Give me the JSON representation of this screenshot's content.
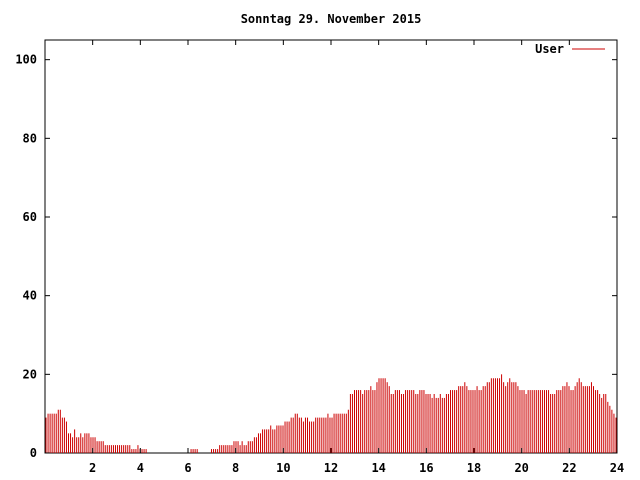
{
  "chart_data": {
    "type": "bar",
    "title": "Sonntag 29. November 2015",
    "xlabel": "",
    "ylabel": "",
    "xlim": [
      0,
      24
    ],
    "ylim": [
      0,
      105
    ],
    "x_ticks": [
      2,
      4,
      6,
      8,
      10,
      12,
      14,
      16,
      18,
      20,
      22,
      24
    ],
    "y_ticks": [
      0,
      20,
      40,
      60,
      80,
      100
    ],
    "grid": false,
    "legend_position": "top-right",
    "series": [
      {
        "name": "User",
        "color": "#cc0000",
        "values": [
          9,
          10,
          10,
          10,
          10,
          10,
          11,
          11,
          9,
          9,
          8,
          5,
          5,
          4,
          6,
          4,
          4,
          5,
          4,
          5,
          5,
          5,
          4,
          4,
          4,
          3,
          3,
          3,
          3,
          2,
          2,
          2,
          2,
          2,
          2,
          2,
          2,
          2,
          2,
          2,
          2,
          2,
          1,
          1,
          1,
          2,
          1,
          1,
          1,
          1,
          0,
          0,
          0,
          0,
          0,
          0,
          0,
          0,
          0,
          0,
          0,
          0,
          0,
          0,
          0,
          0,
          0,
          0,
          0,
          0,
          0,
          1,
          1,
          1,
          1,
          0,
          0,
          0,
          0,
          0,
          0,
          1,
          1,
          1,
          1,
          2,
          2,
          2,
          2,
          2,
          2,
          2,
          3,
          3,
          3,
          2,
          3,
          2,
          2,
          3,
          3,
          3,
          4,
          4,
          5,
          5,
          6,
          6,
          6,
          6,
          7,
          6,
          6,
          7,
          7,
          7,
          7,
          8,
          8,
          8,
          9,
          9,
          10,
          10,
          9,
          9,
          8,
          9,
          9,
          8,
          8,
          8,
          9,
          9,
          9,
          9,
          9,
          9,
          10,
          9,
          9,
          10,
          10,
          10,
          10,
          10,
          10,
          10,
          11,
          15,
          15,
          16,
          16,
          16,
          16,
          15,
          16,
          16,
          16,
          17,
          16,
          16,
          18,
          19,
          19,
          19,
          19,
          18,
          17,
          15,
          15,
          16,
          16,
          16,
          15,
          15,
          16,
          16,
          16,
          16,
          16,
          15,
          15,
          16,
          16,
          16,
          15,
          15,
          15,
          14,
          15,
          14,
          14,
          15,
          14,
          14,
          15,
          15,
          16,
          16,
          16,
          16,
          17,
          17,
          17,
          18,
          17,
          16,
          16,
          16,
          16,
          17,
          16,
          16,
          17,
          17,
          18,
          18,
          19,
          19,
          19,
          19,
          19,
          20,
          18,
          17,
          18,
          19,
          18,
          18,
          18,
          17,
          16,
          16,
          16,
          15,
          16,
          16,
          16,
          16,
          16,
          16,
          16,
          16,
          16,
          16,
          16,
          15,
          15,
          15,
          16,
          16,
          16,
          17,
          17,
          18,
          17,
          16,
          16,
          17,
          18,
          19,
          18,
          17,
          17,
          17,
          17,
          18,
          17,
          16,
          16,
          15,
          14,
          15,
          15,
          13,
          12,
          11,
          10,
          9
        ]
      }
    ]
  }
}
